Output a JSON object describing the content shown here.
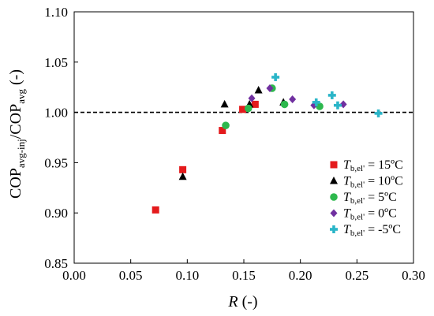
{
  "chart_data": {
    "type": "scatter",
    "xlabel": {
      "main": "R",
      "unit": " (-)"
    },
    "ylabel": {
      "base": "COP",
      "sub1": "avg-inj",
      "mid": "/COP",
      "sub2": "avg",
      "unit": " (-)"
    },
    "xlim": [
      0.0,
      0.3
    ],
    "ylim": [
      0.85,
      1.1
    ],
    "xticks": [
      0.0,
      0.05,
      0.1,
      0.15,
      0.2,
      0.25,
      0.3
    ],
    "yticks": [
      0.85,
      0.9,
      0.95,
      1.0,
      1.05,
      1.1
    ],
    "xtick_labels": [
      "0.00",
      "0.05",
      "0.10",
      "0.15",
      "0.20",
      "0.25",
      "0.30"
    ],
    "ytick_labels": [
      "0.85",
      "0.90",
      "0.95",
      "1.00",
      "1.05",
      "1.10"
    ],
    "grid": false,
    "reference_line": {
      "y": 1.0,
      "style": "dashed",
      "color": "#000000"
    },
    "legend_position": "lower-right",
    "series": [
      {
        "label_var": "T",
        "label_sub": "b,el'",
        "label_value": " = 15ºC",
        "marker": "square",
        "color": "#e41a1c",
        "points": [
          [
            0.072,
            0.903
          ],
          [
            0.096,
            0.943
          ],
          [
            0.131,
            0.982
          ],
          [
            0.149,
            1.003
          ],
          [
            0.16,
            1.008
          ]
        ]
      },
      {
        "label_var": "T",
        "label_sub": "b,el'",
        "label_value": " = 10ºC",
        "marker": "triangle",
        "color": "#000000",
        "points": [
          [
            0.096,
            0.936
          ],
          [
            0.133,
            1.008
          ],
          [
            0.155,
            1.008
          ],
          [
            0.163,
            1.022
          ],
          [
            0.185,
            1.01
          ]
        ]
      },
      {
        "label_var": "T",
        "label_sub": "b,el'",
        "label_value": " = 5ºC",
        "marker": "circle",
        "color": "#2db84d",
        "points": [
          [
            0.134,
            0.987
          ],
          [
            0.154,
            1.004
          ],
          [
            0.175,
            1.024
          ],
          [
            0.186,
            1.008
          ],
          [
            0.217,
            1.006
          ]
        ]
      },
      {
        "label_var": "T",
        "label_sub": "b,el'",
        "label_value": " = 0ºC",
        "marker": "diamond",
        "color": "#7030a0",
        "points": [
          [
            0.157,
            1.014
          ],
          [
            0.173,
            1.024
          ],
          [
            0.193,
            1.013
          ],
          [
            0.212,
            1.007
          ],
          [
            0.238,
            1.008
          ]
        ]
      },
      {
        "label_var": "T",
        "label_sub": "b,el'",
        "label_value": " = -5ºC",
        "marker": "plus",
        "color": "#2ab5c8",
        "points": [
          [
            0.178,
            1.035
          ],
          [
            0.214,
            1.01
          ],
          [
            0.228,
            1.017
          ],
          [
            0.233,
            1.007
          ],
          [
            0.269,
            0.999
          ]
        ]
      }
    ]
  }
}
